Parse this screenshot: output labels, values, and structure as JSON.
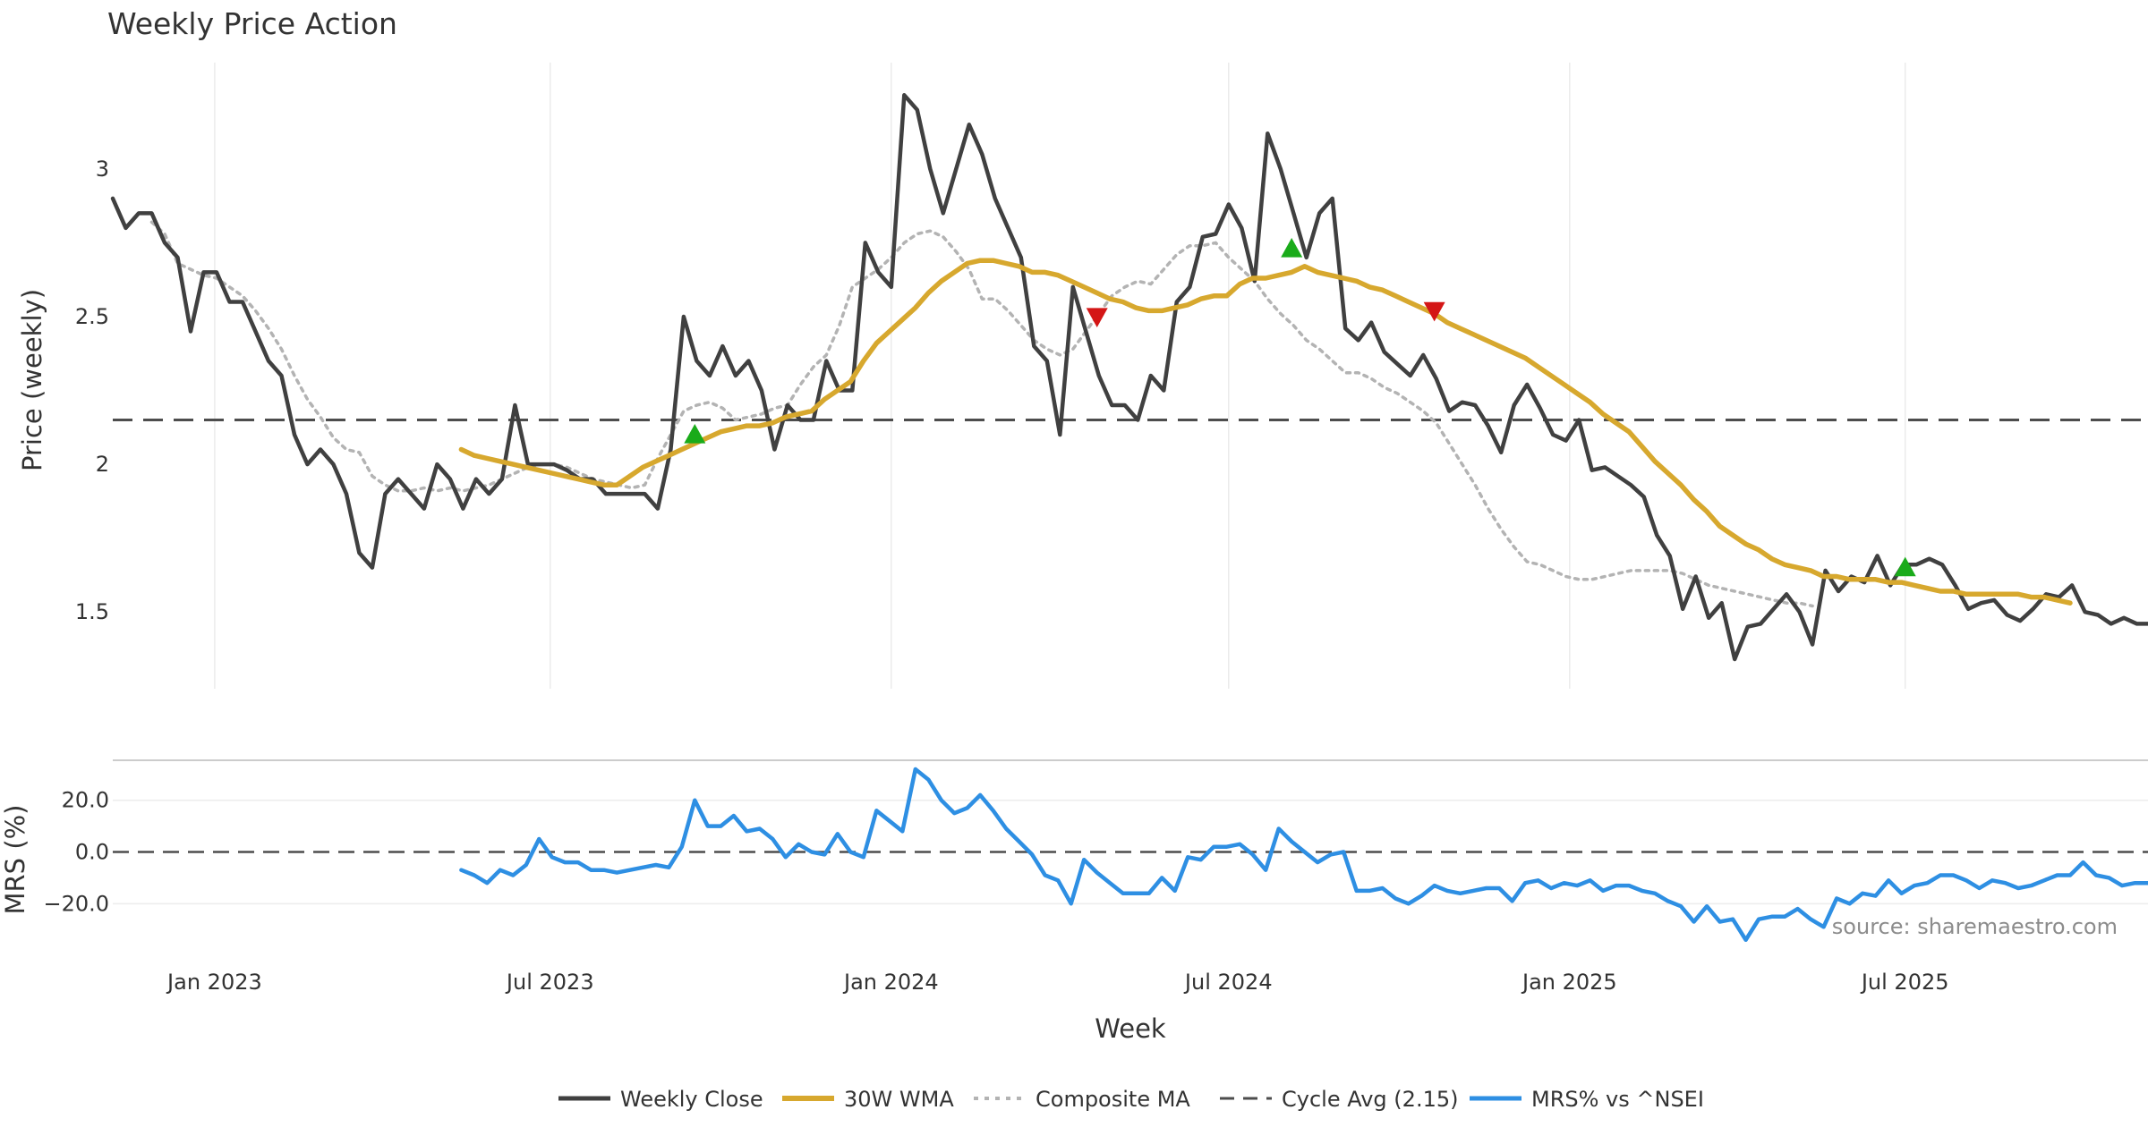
{
  "chart_data": {
    "title": "Weekly Price Action",
    "xlabel": "Week",
    "source": "source: sharemaestro.com",
    "x_ticks": [
      {
        "date": "2023-01-01",
        "label": "Jan 2023"
      },
      {
        "date": "2023-07-01",
        "label": "Jul 2023"
      },
      {
        "date": "2024-01-01",
        "label": "Jan 2024"
      },
      {
        "date": "2024-07-01",
        "label": "Jul 2024"
      },
      {
        "date": "2025-01-01",
        "label": "Jan 2025"
      },
      {
        "date": "2025-07-01",
        "label": "Jul 2025"
      }
    ],
    "x_range": [
      "2022-11-07",
      "2025-11-09"
    ],
    "price_panel": {
      "type": "line",
      "ylabel": "Price (weekly)",
      "ylim": [
        1.24,
        3.36
      ],
      "y_ticks": [
        {
          "value": 1.5,
          "label": "1.5"
        },
        {
          "value": 2,
          "label": "2"
        },
        {
          "value": 2.5,
          "label": "2.5"
        },
        {
          "value": 3,
          "label": "3"
        }
      ],
      "cycle_avg": 2.15,
      "series": [
        {
          "name": "Weekly Close",
          "color": "#404040",
          "style": "solid",
          "start": "2022-11-07",
          "values": [
            2.9,
            2.8,
            2.85,
            2.85,
            2.75,
            2.7,
            2.45,
            2.65,
            2.65,
            2.55,
            2.55,
            2.45,
            2.35,
            2.3,
            2.1,
            2.0,
            2.05,
            2.0,
            1.9,
            1.7,
            1.65,
            1.9,
            1.95,
            1.9,
            1.85,
            2.0,
            1.95,
            1.85,
            1.95,
            1.9,
            1.95,
            2.2,
            2.0,
            2.0,
            2.0,
            1.98,
            1.95,
            1.95,
            1.9,
            1.9,
            1.9,
            1.9,
            1.85,
            2.05,
            2.5,
            2.35,
            2.3,
            2.4,
            2.3,
            2.35,
            2.25,
            2.05,
            2.2,
            2.15,
            2.15,
            2.35,
            2.25,
            2.25,
            2.75,
            2.65,
            2.6,
            3.25,
            3.2,
            3.0,
            2.85,
            3.0,
            3.15,
            3.05,
            2.9,
            2.8,
            2.7,
            2.4,
            2.35,
            2.1,
            2.6,
            2.45,
            2.3,
            2.2,
            2.2,
            2.15,
            2.3,
            2.25,
            2.55,
            2.6,
            2.77,
            2.78,
            2.88,
            2.8,
            2.62,
            3.12,
            3.0,
            2.85,
            2.7,
            2.85,
            2.9,
            2.46,
            2.42,
            2.48,
            2.38,
            2.34,
            2.3,
            2.37,
            2.29,
            2.18,
            2.21,
            2.2,
            2.13,
            2.04,
            2.2,
            2.27,
            2.19,
            2.1,
            2.08,
            2.15,
            1.98,
            1.99,
            1.96,
            1.93,
            1.89,
            1.76,
            1.69,
            1.51,
            1.62,
            1.48,
            1.53,
            1.34,
            1.45,
            1.46,
            1.51,
            1.56,
            1.5,
            1.39,
            1.64,
            1.57,
            1.62,
            1.6,
            1.69,
            1.59,
            1.66,
            1.66,
            1.68,
            1.66,
            1.59,
            1.51,
            1.53,
            1.54,
            1.49,
            1.47,
            1.51,
            1.56,
            1.55,
            1.59,
            1.5,
            1.49,
            1.46,
            1.48,
            1.46,
            1.46
          ]
        },
        {
          "name": "30W WMA",
          "color": "#d7a82e",
          "style": "solid",
          "start": "2023-05-14",
          "values": [
            2.05,
            2.03,
            2.02,
            2.01,
            2.0,
            1.99,
            1.98,
            1.97,
            1.96,
            1.95,
            1.94,
            1.93,
            1.93,
            1.96,
            1.99,
            2.01,
            2.03,
            2.05,
            2.07,
            2.09,
            2.11,
            2.12,
            2.13,
            2.13,
            2.14,
            2.16,
            2.17,
            2.18,
            2.22,
            2.25,
            2.28,
            2.35,
            2.41,
            2.45,
            2.49,
            2.53,
            2.58,
            2.62,
            2.65,
            2.68,
            2.69,
            2.69,
            2.68,
            2.67,
            2.65,
            2.65,
            2.64,
            2.62,
            2.6,
            2.58,
            2.56,
            2.55,
            2.53,
            2.52,
            2.52,
            2.53,
            2.54,
            2.56,
            2.57,
            2.57,
            2.61,
            2.63,
            2.63,
            2.64,
            2.65,
            2.67,
            2.65,
            2.64,
            2.63,
            2.62,
            2.6,
            2.59,
            2.57,
            2.55,
            2.53,
            2.51,
            2.48,
            2.46,
            2.44,
            2.42,
            2.4,
            2.38,
            2.36,
            2.33,
            2.3,
            2.27,
            2.24,
            2.21,
            2.17,
            2.14,
            2.11,
            2.06,
            2.01,
            1.97,
            1.93,
            1.88,
            1.84,
            1.79,
            1.76,
            1.73,
            1.71,
            1.68,
            1.66,
            1.65,
            1.64,
            1.62,
            1.62,
            1.61,
            1.61,
            1.61,
            1.6,
            1.6,
            1.59,
            1.58,
            1.57,
            1.57,
            1.56,
            1.56,
            1.56,
            1.56,
            1.56,
            1.55,
            1.55,
            1.54,
            1.53
          ]
        },
        {
          "name": "Composite MA",
          "color": "#b3b3b3",
          "style": "dotted",
          "start": "2022-11-28",
          "values": [
            2.82,
            2.78,
            2.68,
            2.66,
            2.64,
            2.63,
            2.6,
            2.57,
            2.52,
            2.46,
            2.39,
            2.3,
            2.22,
            2.16,
            2.09,
            2.05,
            2.04,
            1.96,
            1.93,
            1.91,
            1.91,
            1.92,
            1.91,
            1.92,
            1.91,
            1.92,
            1.93,
            1.95,
            1.97,
            1.99,
            2.0,
            2.0,
            1.99,
            1.97,
            1.95,
            1.94,
            1.93,
            1.92,
            1.93,
            2.02,
            2.1,
            2.18,
            2.2,
            2.21,
            2.19,
            2.15,
            2.16,
            2.17,
            2.19,
            2.2,
            2.27,
            2.33,
            2.37,
            2.47,
            2.6,
            2.63,
            2.66,
            2.7,
            2.75,
            2.78,
            2.79,
            2.77,
            2.72,
            2.66,
            2.56,
            2.56,
            2.52,
            2.47,
            2.42,
            2.39,
            2.37,
            2.39,
            2.45,
            2.51,
            2.57,
            2.6,
            2.62,
            2.61,
            2.66,
            2.71,
            2.74,
            2.74,
            2.75,
            2.7,
            2.66,
            2.62,
            2.56,
            2.51,
            2.47,
            2.42,
            2.39,
            2.35,
            2.31,
            2.31,
            2.29,
            2.26,
            2.24,
            2.21,
            2.18,
            2.14,
            2.07,
            2.0,
            1.93,
            1.85,
            1.78,
            1.72,
            1.67,
            1.66,
            1.64,
            1.62,
            1.61,
            1.61,
            1.62,
            1.63,
            1.64,
            1.64,
            1.64,
            1.64,
            1.63,
            1.61,
            1.59,
            1.58,
            1.57,
            1.56,
            1.55,
            1.54,
            1.53,
            1.53,
            1.52
          ]
        }
      ],
      "markers": [
        {
          "date": "2023-09-17",
          "value": 2.1,
          "direction": "up",
          "color": "#1aab1a"
        },
        {
          "date": "2024-04-21",
          "value": 2.5,
          "direction": "down",
          "color": "#d41616"
        },
        {
          "date": "2024-08-04",
          "value": 2.73,
          "direction": "up",
          "color": "#1aab1a"
        },
        {
          "date": "2024-10-20",
          "value": 2.52,
          "direction": "down",
          "color": "#d41616"
        },
        {
          "date": "2025-07-01",
          "value": 1.65,
          "direction": "up",
          "color": "#1aab1a"
        }
      ]
    },
    "mrs_panel": {
      "type": "line",
      "ylabel": "MRS (%)",
      "ylim": [
        -32,
        32
      ],
      "y_ticks": [
        {
          "value": 20,
          "label": "20.0"
        },
        {
          "value": 0,
          "label": "0.0"
        },
        {
          "value": -20,
          "label": "−20.0"
        }
      ],
      "zero_line": 0,
      "series": [
        {
          "name": "MRS% vs ^NSEI",
          "color": "#2e8fe3",
          "style": "solid",
          "start": "2023-05-14",
          "values": [
            -7,
            -9,
            -12,
            -7,
            -9,
            -5,
            5,
            -2,
            -4,
            -4,
            -7,
            -7,
            -8,
            -7,
            -6,
            -5,
            -6,
            2,
            20,
            10,
            10,
            14,
            8,
            9,
            5,
            -2,
            3,
            0,
            -1,
            7,
            0,
            -2,
            16,
            12,
            8,
            32,
            28,
            20,
            15,
            17,
            22,
            16,
            9,
            4,
            -1,
            -9,
            -11,
            -20,
            -3,
            -8,
            -12,
            -16,
            -16,
            -16,
            -10,
            -15,
            -2,
            -3,
            2,
            2,
            3,
            -1,
            -7,
            9,
            4,
            0,
            -4,
            -1,
            0,
            -15,
            -15,
            -14,
            -18,
            -20,
            -17,
            -13,
            -15,
            -16,
            -15,
            -14,
            -14,
            -19,
            -12,
            -11,
            -14,
            -12,
            -13,
            -11,
            -15,
            -13,
            -13,
            -15,
            -16,
            -19,
            -21,
            -27,
            -21,
            -27,
            -26,
            -34,
            -26,
            -25,
            -25,
            -22,
            -26,
            -29,
            -18,
            -20,
            -16,
            -17,
            -11,
            -16,
            -13,
            -12,
            -9,
            -9,
            -11,
            -14,
            -11,
            -12,
            -14,
            -13,
            -11,
            -9,
            -9,
            -4,
            -9,
            -10,
            -13,
            -12,
            -12,
            -11
          ]
        }
      ]
    }
  }
}
